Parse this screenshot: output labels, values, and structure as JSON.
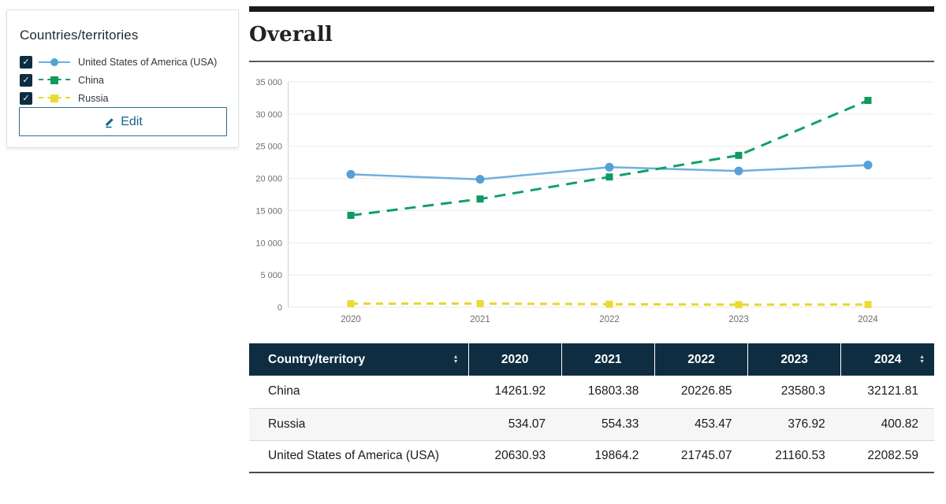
{
  "sidebar": {
    "title": "Countries/territories",
    "edit_label": "Edit",
    "items": [
      {
        "label": "United States of America (USA)",
        "checked": true,
        "line_color": "#6fafe0",
        "marker_color": "#55a0d9",
        "marker": "circle",
        "line_style": "solid"
      },
      {
        "label": "China",
        "checked": true,
        "line_color": "#12a066",
        "marker_color": "#0f9a5f",
        "marker": "square",
        "line_style": "dashed"
      },
      {
        "label": "Russia",
        "checked": true,
        "line_color": "#e7d829",
        "marker_color": "#ecd934",
        "marker": "square",
        "line_style": "dashed"
      }
    ]
  },
  "main": {
    "title": "Overall"
  },
  "chart_data": {
    "type": "line",
    "title": "Overall",
    "x": [
      2020,
      2021,
      2022,
      2023,
      2024
    ],
    "series": [
      {
        "name": "United States of America (USA)",
        "values": [
          20630.93,
          19864.2,
          21745.07,
          21160.53,
          22082.59
        ],
        "color": "#6fafe0",
        "marker_color": "#55a0d9",
        "marker": "circle",
        "style": "solid"
      },
      {
        "name": "China",
        "values": [
          14261.92,
          16803.38,
          20226.85,
          23580.3,
          32121.81
        ],
        "color": "#12a066",
        "marker_color": "#0f9a5f",
        "marker": "square",
        "style": "dashed"
      },
      {
        "name": "Russia",
        "values": [
          534.07,
          554.33,
          453.47,
          376.92,
          400.82
        ],
        "color": "#e7d829",
        "marker_color": "#ecd934",
        "marker": "square",
        "style": "dashed"
      }
    ],
    "ylim": [
      0,
      35000
    ],
    "ytick_step": 5000,
    "ytick_labels": [
      "0",
      "5 000",
      "10 000",
      "15 000",
      "20 000",
      "25 000",
      "30 000",
      "35 000"
    ],
    "xtick_labels": [
      "2020",
      "2021",
      "2022",
      "2023",
      "2024"
    ],
    "grid": true,
    "legend_position": "external-left",
    "xlabel": "",
    "ylabel": ""
  },
  "table": {
    "columns": [
      "Country/territory",
      "2020",
      "2021",
      "2022",
      "2023",
      "2024"
    ],
    "sortable_columns": [
      "Country/territory",
      "2024"
    ],
    "rows": [
      {
        "country": "China",
        "values": [
          "14261.92",
          "16803.38",
          "20226.85",
          "23580.3",
          "32121.81"
        ]
      },
      {
        "country": "Russia",
        "values": [
          "534.07",
          "554.33",
          "453.47",
          "376.92",
          "400.82"
        ]
      },
      {
        "country": "United States of America (USA)",
        "values": [
          "20630.93",
          "19864.2",
          "21745.07",
          "21160.53",
          "22082.59"
        ]
      }
    ]
  },
  "colors": {
    "header_navy": "#0e2d40",
    "checkbox_navy": "#0e2d40",
    "accent_blue": "#15658f",
    "grid_gray": "#eaeaea",
    "axis_label_gray": "#6e6e6e",
    "topbar_black": "#1a1a1a"
  }
}
